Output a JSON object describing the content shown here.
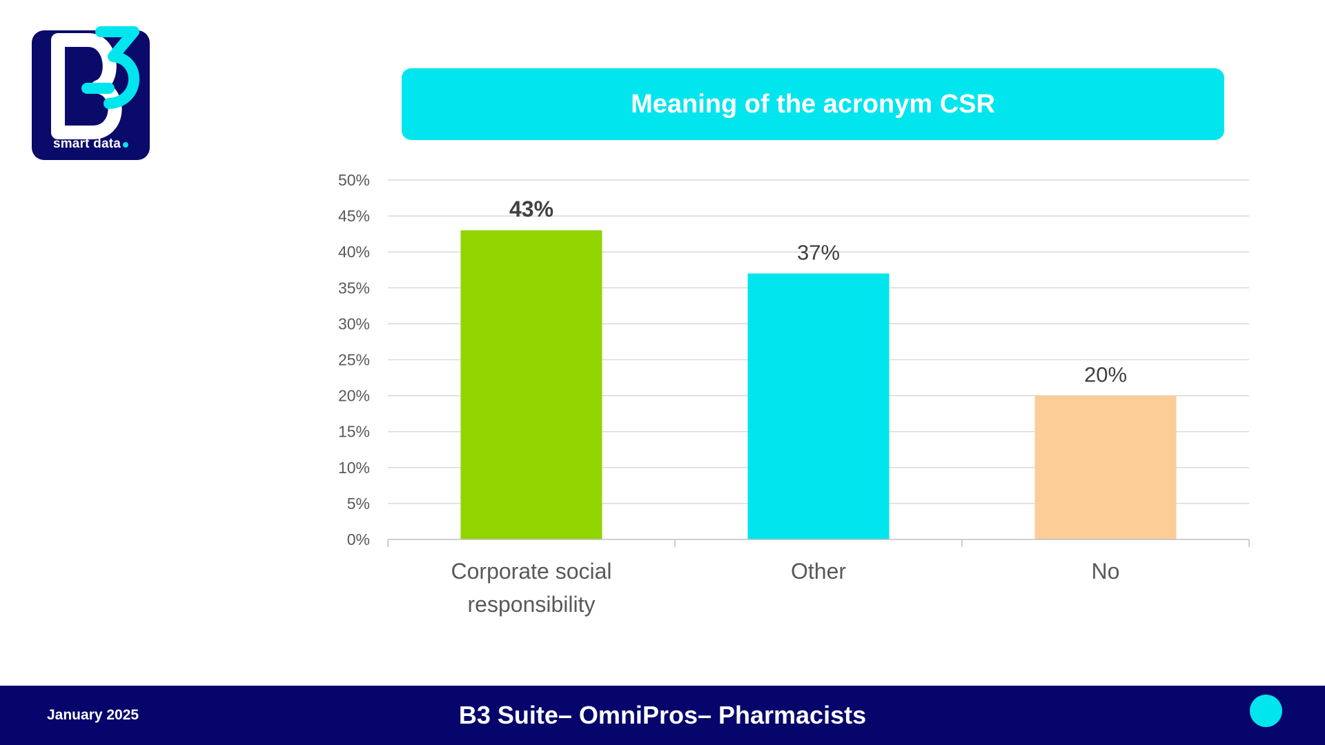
{
  "logo": {
    "label": "smart data"
  },
  "footer": {
    "date": "January 2025",
    "title": "B3 Suite– OmniPros– Pharmacists"
  },
  "colors": {
    "navy": "#05056b",
    "accent": "#00e5ee"
  },
  "chart_data": {
    "type": "bar",
    "title": "Meaning of the acronym CSR",
    "xlabel": "",
    "ylabel": "",
    "ylim": [
      0,
      50
    ],
    "yticks": [
      0,
      5,
      10,
      15,
      20,
      25,
      30,
      35,
      40,
      45,
      50
    ],
    "ytick_labels": [
      "0%",
      "5%",
      "10%",
      "15%",
      "20%",
      "25%",
      "30%",
      "35%",
      "40%",
      "45%",
      "50%"
    ],
    "grid": true,
    "categories": [
      "Corporate social responsibility",
      "Other",
      "No"
    ],
    "values": [
      43,
      37,
      20
    ],
    "value_labels": [
      "43%",
      "37%",
      "20%"
    ],
    "colors": [
      "#92d400",
      "#00e5ee",
      "#fdcd98"
    ],
    "bold_label_index": 0
  }
}
